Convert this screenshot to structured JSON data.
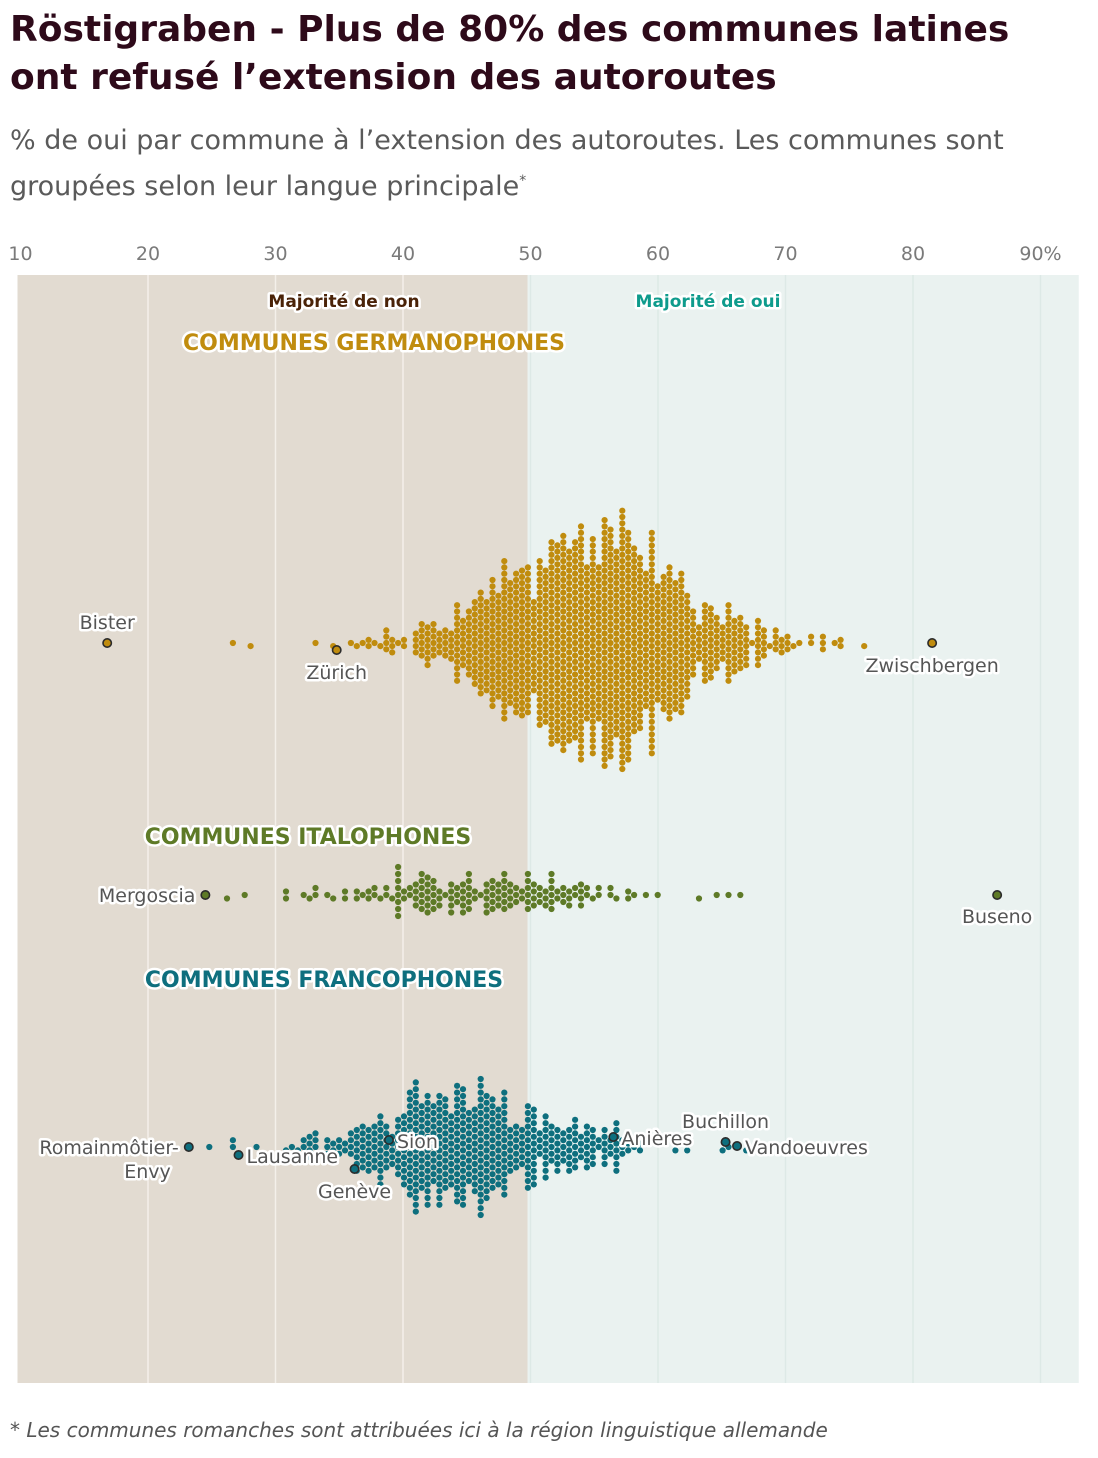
{
  "header": {
    "title": "Röstigraben - Plus de 80% des communes latines ont refusé l’extension des autoroutes",
    "subtitle": "% de oui par commune à l’extension des autoroutes. Les communes sont groupées selon leur langue principale",
    "subtitle_marker": "*"
  },
  "footnote": "* Les communes romanches sont attribuées ici à la région linguistique allemande",
  "chart_data": {
    "type": "scatter",
    "subtype": "beeswarm",
    "x_axis": {
      "min": 10,
      "max": 93,
      "ticks": [
        10,
        20,
        30,
        40,
        50,
        60,
        70,
        80,
        90
      ],
      "tick_labels": [
        "10",
        "20",
        "30",
        "40",
        "50",
        "60",
        "70",
        "80",
        "90%"
      ],
      "position": "top",
      "grid": true
    },
    "threshold": 50,
    "regions": [
      {
        "label": "Majorité de non",
        "range": [
          10,
          50
        ],
        "color": "#e2dbd1",
        "label_color": "#4a2308"
      },
      {
        "label": "Majorité de oui",
        "range": [
          50,
          93
        ],
        "color": "#eaf2f0",
        "label_color": "#0e9b8c"
      }
    ],
    "groups": [
      {
        "name": "COMMUNES GERMANOPHONES",
        "color": "#c08c0e",
        "distribution": {
          "center": 54.5,
          "spread": 6.5,
          "min": 26.5,
          "max": 76,
          "count_estimate": 1200
        },
        "highlighted": [
          {
            "name": "Bister",
            "value": 16.8
          },
          {
            "name": "Zürich",
            "value": 34.8
          },
          {
            "name": "Zwischbergen",
            "value": 81.5
          }
        ]
      },
      {
        "name": "COMMUNES ITALOPHONES",
        "color": "#5e7a27",
        "distribution": {
          "center": 46,
          "spread": 6,
          "min": 26,
          "max": 66.5,
          "count_estimate": 160
        },
        "highlighted": [
          {
            "name": "Mergoscia",
            "value": 24.5
          },
          {
            "name": "Buseno",
            "value": 86.6
          }
        ]
      },
      {
        "name": "COMMUNES FRANCOPHONES",
        "color": "#0e6f7e",
        "distribution": {
          "center": 45,
          "spread": 6,
          "min": 25,
          "max": 67,
          "count_estimate": 500
        },
        "highlighted": [
          {
            "name": "Romainmôtier-Envy",
            "value": 23.2
          },
          {
            "name": "Lausanne",
            "value": 27.1
          },
          {
            "name": "Genève",
            "value": 36.2
          },
          {
            "name": "Sion",
            "value": 38.9
          },
          {
            "name": "Anières",
            "value": 56.5
          },
          {
            "name": "Buchillon",
            "value": 65.3
          },
          {
            "name": "Vandoeuvres",
            "value": 66.2
          }
        ]
      }
    ]
  }
}
